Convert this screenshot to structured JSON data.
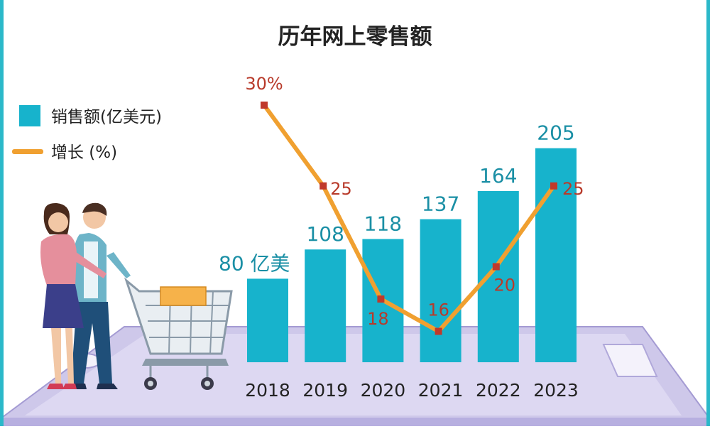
{
  "chart_data": {
    "type": "bar",
    "title": "历年网上零售额",
    "categories": [
      "2018",
      "2019",
      "2020",
      "2021",
      "2022",
      "2023"
    ],
    "series": [
      {
        "name": "销售额(亿美元)",
        "type": "bar",
        "values": [
          80,
          108,
          118,
          137,
          164,
          205
        ],
        "value_labels": [
          "80 亿美",
          "108",
          "118",
          "137",
          "164",
          "205"
        ]
      },
      {
        "name": "增长 (%)",
        "type": "line",
        "values": [
          30,
          25,
          18,
          16,
          20,
          25
        ],
        "value_labels": [
          "30%",
          "25",
          "18",
          "16",
          "20",
          "25"
        ]
      }
    ],
    "legend": [
      "销售额(亿美元)",
      "增长 (%)"
    ],
    "legend_position": "top-left",
    "grid": false
  },
  "colors": {
    "bar": "#17b3cc",
    "bar_label": "#1a8fa5",
    "line": "#f0a030",
    "point": "#c0392b",
    "line_label": "#b83a2a",
    "title": "#222222",
    "axis_label": "#222222",
    "platform": "#c9c3e6",
    "platform_edge": "#9d95cf",
    "frame": "#2bb8c9"
  },
  "illustration": {
    "people": "couple-shopping-icon",
    "cart": "shopping-cart-icon",
    "device": "tablet-device-icon"
  }
}
